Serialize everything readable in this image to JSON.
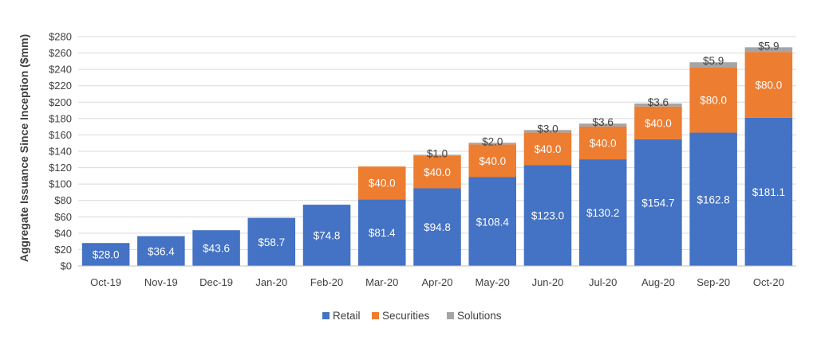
{
  "chart_data": {
    "type": "bar",
    "stacked": true,
    "title": "",
    "xlabel": "",
    "ylabel": "Aggregate Issuance Since Inception ($mm)",
    "ylim": [
      0,
      280
    ],
    "ytick_step": 20,
    "ytick_labels": [
      "$0",
      "$20",
      "$40",
      "$60",
      "$80",
      "$100",
      "$120",
      "$140",
      "$160",
      "$180",
      "$200",
      "$220",
      "$240",
      "$260",
      "$280"
    ],
    "grid": true,
    "legend_position": "bottom-center",
    "categories": [
      "Oct-19",
      "Nov-19",
      "Dec-19",
      "Jan-20",
      "Feb-20",
      "Mar-20",
      "Apr-20",
      "May-20",
      "Jun-20",
      "Jul-20",
      "Aug-20",
      "Sep-20",
      "Oct-20"
    ],
    "series": [
      {
        "name": "Retail",
        "color": "#4472C4",
        "label_color": "#ffffff",
        "values": [
          28.0,
          36.4,
          43.6,
          58.7,
          74.8,
          81.4,
          94.8,
          108.4,
          123.0,
          130.2,
          154.7,
          162.8,
          181.1
        ],
        "labels": [
          "$28.0",
          "$36.4",
          "$43.6",
          "$58.7",
          "$74.8",
          "$81.4",
          "$94.8",
          "$108.4",
          "$123.0",
          "$130.2",
          "$154.7",
          "$162.8",
          "$181.1"
        ]
      },
      {
        "name": "Securities",
        "color": "#ED7D31",
        "label_color": "#ffffff",
        "values": [
          null,
          null,
          null,
          null,
          null,
          40.0,
          40.0,
          40.0,
          40.0,
          40.0,
          40.0,
          80.0,
          80.0
        ],
        "labels": [
          null,
          null,
          null,
          null,
          null,
          "$40.0",
          "$40.0",
          "$40.0",
          "$40.0",
          "$40.0",
          "$40.0",
          "$80.0",
          "$80.0"
        ]
      },
      {
        "name": "Solutions",
        "color": "#A5A5A5",
        "label_color": "#404040",
        "values": [
          null,
          null,
          null,
          null,
          null,
          null,
          1.0,
          2.0,
          3.0,
          3.6,
          3.6,
          5.9,
          5.9
        ],
        "labels": [
          null,
          null,
          null,
          null,
          null,
          null,
          "$1.0",
          "$2.0",
          "$3.0",
          "$3.6",
          "$3.6",
          "$5.9",
          "$5.9"
        ]
      }
    ]
  }
}
